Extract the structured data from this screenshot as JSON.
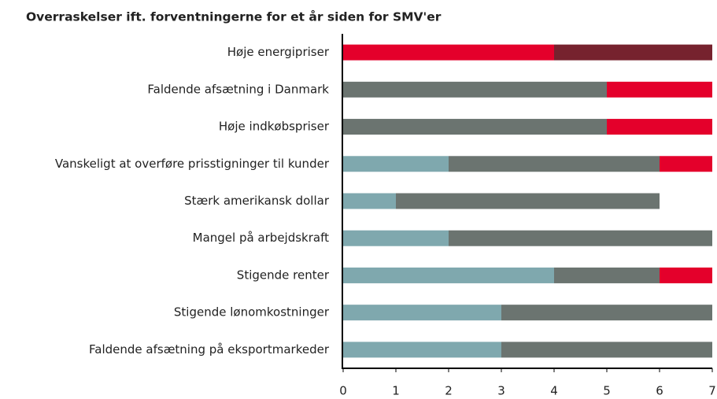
{
  "chart_data": {
    "type": "stacked-barh",
    "title": "Overraskelser ift. forventningerne for et år siden for SMV'er",
    "categories": [
      "Høje energipriser",
      "Faldende afsætning i Danmark",
      "Høje indkøbspriser",
      "Vanskeligt at overføre prisstigninger til kunder",
      "Stærk amerikansk dollar",
      "Mangel på arbejdskraft",
      "Stigende renter",
      "Stigende lønomkostninger",
      "Faldende afsætning på eksportmarkeder"
    ],
    "series": [
      {
        "color": "#7fa8ae",
        "values": [
          0,
          0,
          0,
          2,
          1,
          2,
          4,
          3,
          3
        ]
      },
      {
        "color": "#6b7470",
        "values": [
          0,
          5,
          5,
          4,
          5,
          5,
          2,
          4,
          4
        ]
      },
      {
        "color": "#e4002b",
        "values": [
          4,
          2,
          2,
          1,
          0,
          0,
          1,
          0,
          0
        ]
      },
      {
        "color": "#76222e",
        "values": [
          3,
          0,
          0,
          0,
          0,
          0,
          0,
          0,
          0
        ]
      }
    ],
    "xlim": [
      0,
      7
    ],
    "xticks": [
      0,
      1,
      2,
      3,
      4,
      5,
      6,
      7
    ]
  }
}
